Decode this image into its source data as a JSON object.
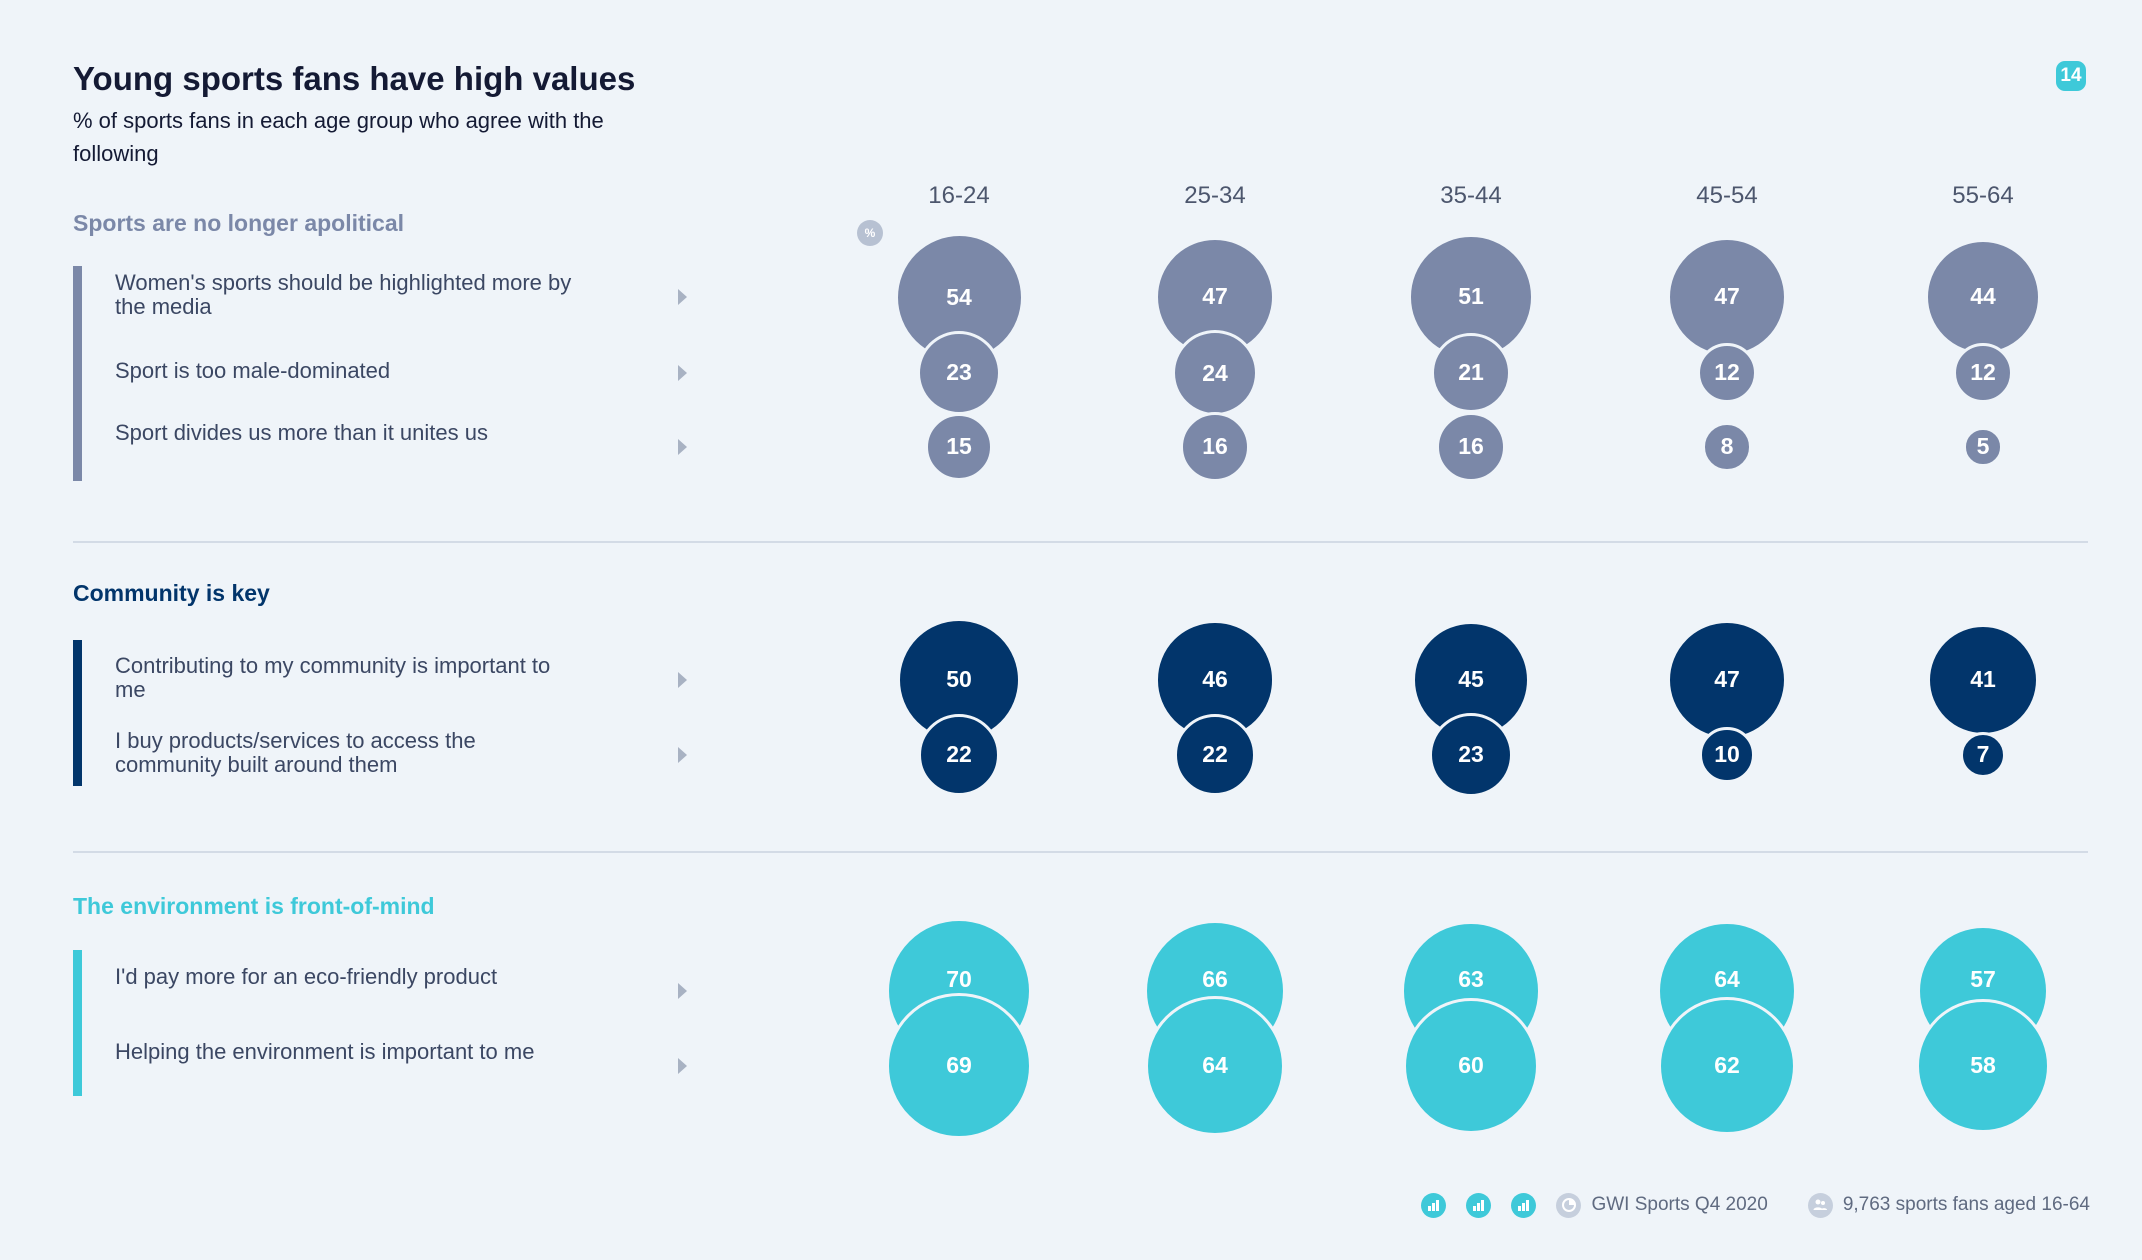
{
  "header": {
    "title": "Young sports fans have high values",
    "subtitle": "% of sports fans in each age group who agree with the following",
    "page_number": "14"
  },
  "footer": {
    "source": "GWI Sports Q4 2020",
    "base": "9,763 sports fans aged 16-64",
    "icons": [
      "bar-chart-icon",
      "bar-chart-icon",
      "bar-chart-icon",
      "pie-chart-icon",
      "people-icon"
    ]
  },
  "percent_icon": "%",
  "colors": {
    "background": "#eff4f9",
    "apolitical": "#7b88a8",
    "community": "#02356b",
    "environment": "#3ec9d9",
    "text_dark": "#141a34"
  },
  "chart_data": {
    "type": "bubble",
    "categories": [
      "16-24",
      "25-34",
      "35-44",
      "45-54",
      "55-64"
    ],
    "sections": [
      {
        "title": "Sports are no longer apolitical",
        "color": "#7b88a8",
        "rows": [
          {
            "label": "Women's sports should be highlighted more by the media",
            "values": [
              54,
              47,
              51,
              47,
              44
            ]
          },
          {
            "label": "Sport is too male-dominated",
            "values": [
              23,
              24,
              21,
              12,
              12
            ]
          },
          {
            "label": "Sport divides us more than it unites us",
            "values": [
              15,
              16,
              16,
              8,
              5
            ]
          }
        ]
      },
      {
        "title": "Community is key",
        "color": "#02356b",
        "rows": [
          {
            "label": "Contributing to my community is important to me",
            "values": [
              50,
              46,
              45,
              47,
              41
            ]
          },
          {
            "label": "I buy products/services to access the community built around them",
            "values": [
              22,
              22,
              23,
              10,
              7
            ]
          }
        ]
      },
      {
        "title": "The environment is front-of-mind",
        "color": "#3ec9d9",
        "rows": [
          {
            "label": "I'd pay more for an eco-friendly product",
            "values": [
              70,
              66,
              63,
              64,
              57
            ]
          },
          {
            "label": "Helping the environment is important to me",
            "values": [
              69,
              64,
              60,
              62,
              58
            ]
          }
        ]
      }
    ]
  }
}
